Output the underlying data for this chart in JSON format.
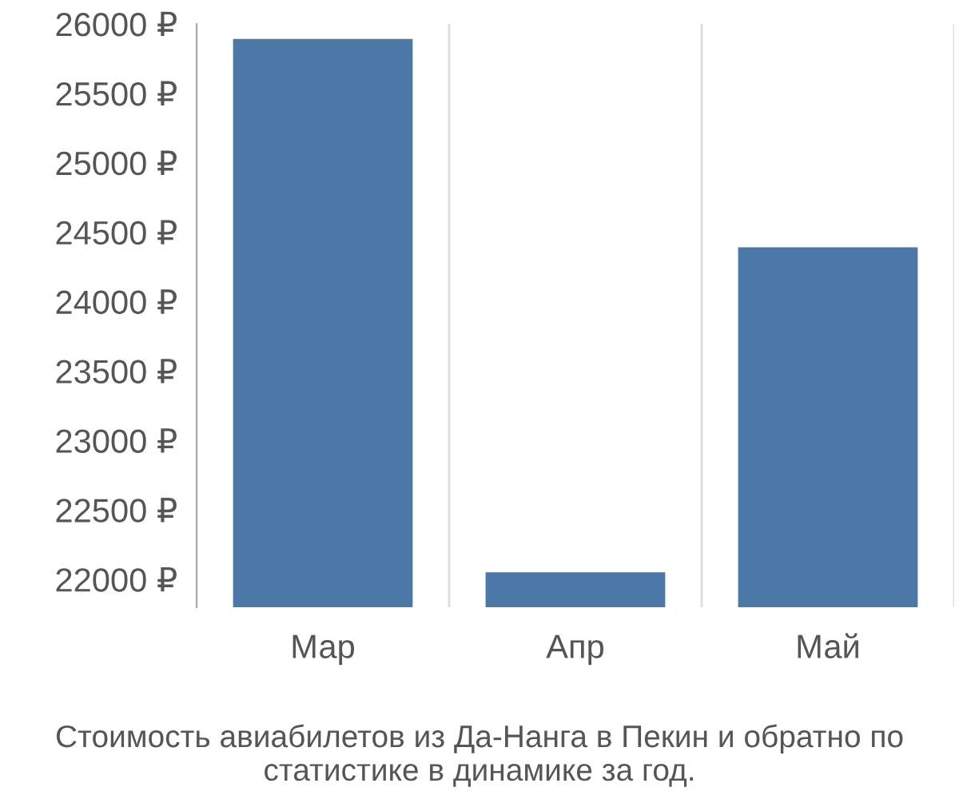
{
  "chart_data": {
    "type": "bar",
    "categories": [
      "Мар",
      "Апр",
      "Май"
    ],
    "values": [
      25900,
      22060,
      24400
    ],
    "color": "#4c78a8",
    "ylim": [
      21800,
      26000
    ],
    "yticks": [
      {
        "value": 22000,
        "label": "22000 ₽"
      },
      {
        "value": 22500,
        "label": "22500 ₽"
      },
      {
        "value": 23000,
        "label": "23000 ₽"
      },
      {
        "value": 23500,
        "label": "23500 ₽"
      },
      {
        "value": 24000,
        "label": "24000 ₽"
      },
      {
        "value": 24500,
        "label": "24500 ₽"
      },
      {
        "value": 25000,
        "label": "25000 ₽"
      },
      {
        "value": 25500,
        "label": "25500 ₽"
      },
      {
        "value": 26000,
        "label": "26000 ₽"
      }
    ],
    "grid": "x",
    "annotations": [
      "Стоимость авиабилетов из Да-Нанга в Пекин и обратно по статистике в динамике за год."
    ]
  }
}
